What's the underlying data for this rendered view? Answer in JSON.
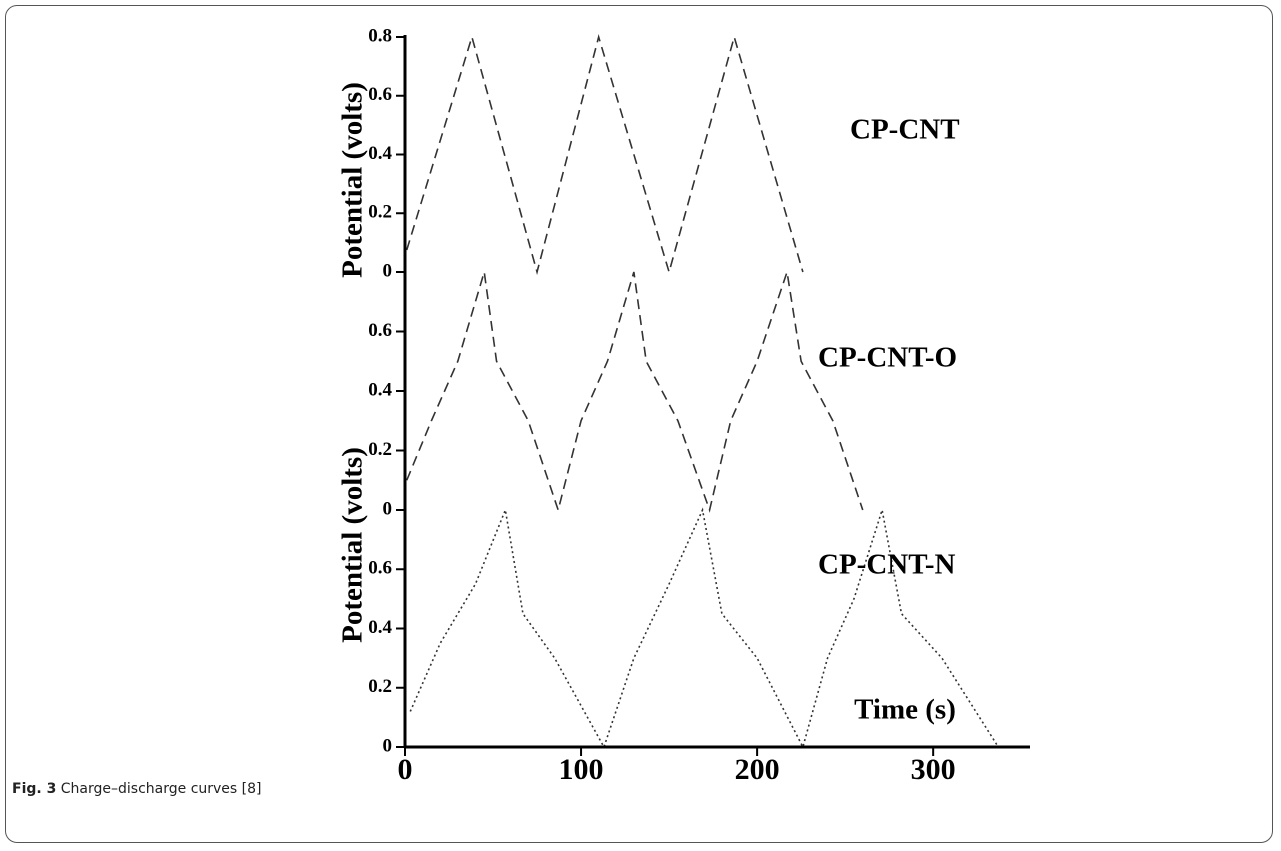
{
  "chart_data": [
    {
      "type": "line",
      "y_label": "Potential (volts)",
      "xlim": [
        0,
        355
      ],
      "ylim": [
        0,
        0.8
      ],
      "yticks": [
        0,
        0.2,
        0.4,
        0.6,
        0.8
      ],
      "series": [
        {
          "name": "CP-CNT",
          "color": "#333333",
          "dash": "dashed",
          "x": [
            1,
            38,
            75,
            110,
            150,
            187,
            226
          ],
          "values": [
            0.075,
            0.8,
            0,
            0.8,
            0,
            0.8,
            0
          ]
        }
      ]
    },
    {
      "type": "line",
      "xlim": [
        0,
        355
      ],
      "ylim": [
        0,
        0.8
      ],
      "yticks": [
        0,
        0.2,
        0.4,
        0.6
      ],
      "series": [
        {
          "name": "CP-CNT-O",
          "color": "#333333",
          "dash": "dashed",
          "x": [
            1,
            15,
            30,
            45,
            52,
            70,
            87,
            100,
            115,
            130,
            137,
            155,
            173,
            185,
            200,
            217,
            225,
            243,
            260
          ],
          "values": [
            0.1,
            0.3,
            0.5,
            0.8,
            0.5,
            0.3,
            0,
            0.3,
            0.5,
            0.8,
            0.5,
            0.3,
            0,
            0.3,
            0.5,
            0.8,
            0.5,
            0.3,
            0
          ]
        }
      ]
    },
    {
      "type": "line",
      "y_label": "Potential (volts)",
      "x_label": "Time (s)",
      "xlim": [
        0,
        355
      ],
      "xticks": [
        0,
        100,
        200,
        300
      ],
      "ylim": [
        0,
        0.8
      ],
      "yticks": [
        0,
        0.2,
        0.4,
        0.6
      ],
      "series": [
        {
          "name": "CP-CNT-N",
          "color": "#333333",
          "dash": "dotted",
          "x": [
            3,
            20,
            40,
            57,
            67,
            85,
            113,
            130,
            150,
            169,
            180,
            200,
            226,
            240,
            255,
            271,
            282,
            305,
            337
          ],
          "values": [
            0.12,
            0.35,
            0.55,
            0.8,
            0.45,
            0.3,
            0,
            0.3,
            0.55,
            0.8,
            0.45,
            0.3,
            0,
            0.3,
            0.5,
            0.8,
            0.45,
            0.3,
            0
          ]
        }
      ]
    }
  ],
  "caption": {
    "label": "Fig. 3",
    "text": "Charge–discharge curves [8]"
  }
}
